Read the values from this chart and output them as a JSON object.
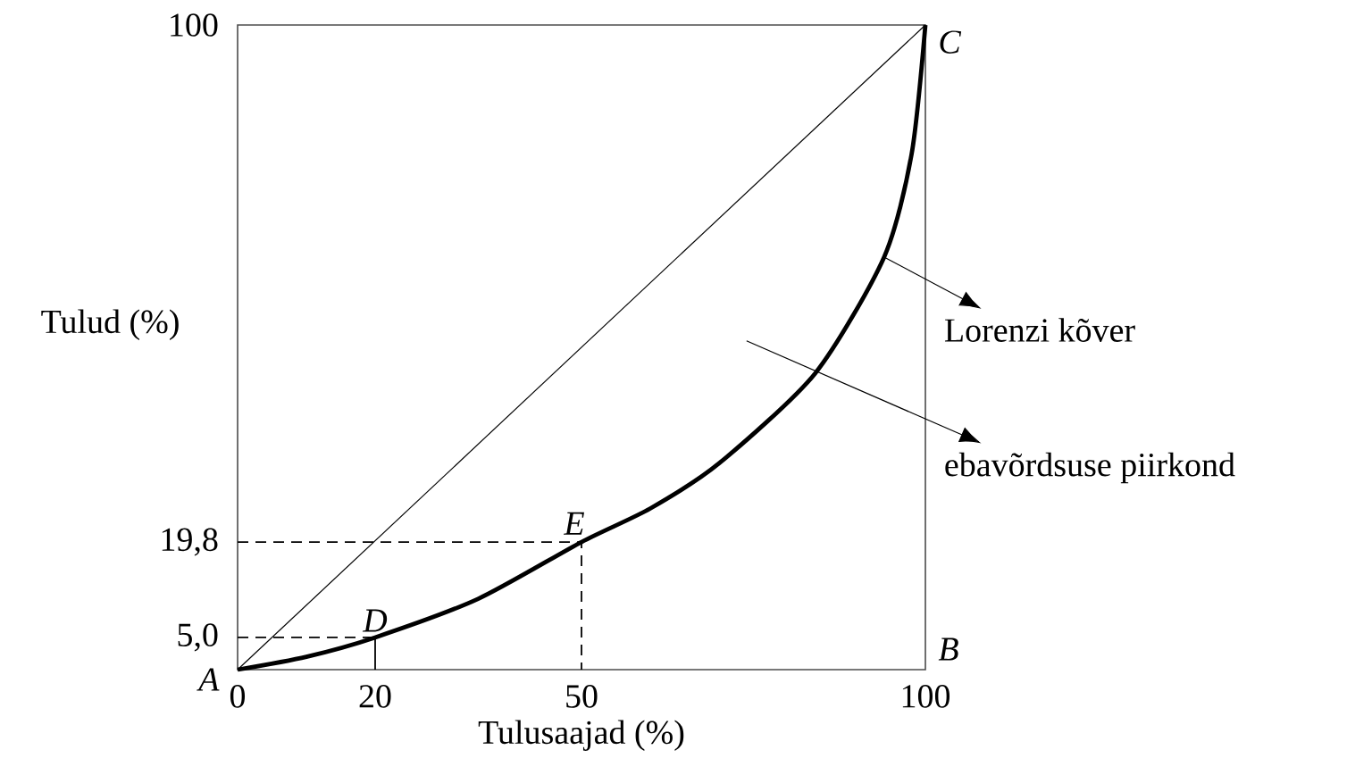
{
  "chart_data": {
    "type": "line",
    "xlabel": "Tulusaajad (%)",
    "ylabel": "Tulud (%)",
    "xlim": [
      0,
      100
    ],
    "ylim": [
      0,
      100
    ],
    "xticks": [
      0,
      20,
      50,
      100
    ],
    "yticks": [
      {
        "value": 5,
        "label": "5,0"
      },
      {
        "value": 19.8,
        "label": "19,8"
      },
      100
    ],
    "series": [
      {
        "color": "#000000",
        "x": [
          0,
          100
        ],
        "values": [
          0,
          100
        ]
      },
      {
        "color": "#000000",
        "x": [
          0,
          10,
          20,
          35,
          50,
          60,
          70,
          84,
          94,
          98,
          100
        ],
        "values": [
          0,
          2,
          5,
          11,
          19.8,
          25,
          32,
          46,
          64,
          80,
          100
        ]
      },
      {
        "color": "#000000",
        "line_style": "dashed",
        "x": [
          0,
          50,
          50
        ],
        "values": [
          19.8,
          19.8,
          0
        ]
      },
      {
        "color": "#000000",
        "line_style": "dashed",
        "x": [
          0,
          20
        ],
        "values": [
          5,
          5
        ]
      },
      {
        "color": "#000000",
        "x": [
          20,
          20
        ],
        "values": [
          5,
          0
        ]
      }
    ],
    "annotations": [
      {
        "text": "*A*",
        "x": 0,
        "y": 0
      },
      "*B*",
      {
        "text": "*C*",
        "x": 100,
        "y": 100
      },
      {
        "text": "*D*",
        "x": 20,
        "y": 5
      },
      {
        "text": "*E*",
        "x": 50,
        "y": 19.8
      },
      {
        "text": "Lorenzi kõver",
        "x": 94,
        "y": 64
      },
      "ebavõrdsuse piirkond"
    ]
  }
}
